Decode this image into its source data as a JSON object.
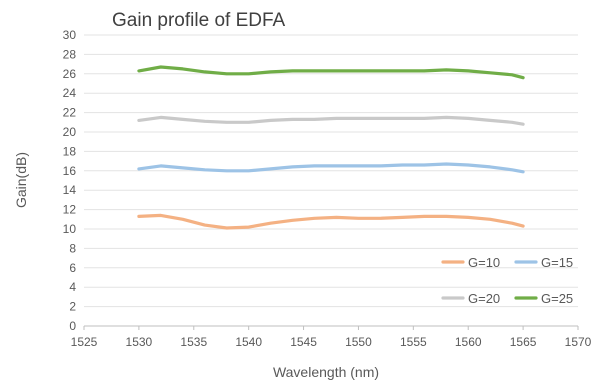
{
  "chart_data": {
    "type": "line",
    "title": "Gain profile of EDFA",
    "xlabel": "Wavelength (nm)",
    "ylabel": "Gain(dB)",
    "xlim": [
      1525,
      1570
    ],
    "ylim": [
      0,
      30
    ],
    "x_ticks": [
      "1525",
      "1530",
      "1535",
      "1540",
      "1545",
      "1550",
      "1555",
      "1560",
      "1565",
      "1570"
    ],
    "y_ticks": [
      "0",
      "2",
      "4",
      "6",
      "8",
      "10",
      "12",
      "14",
      "16",
      "18",
      "20",
      "22",
      "24",
      "26",
      "28",
      "30"
    ],
    "grid": "horizontal",
    "legend_position": "bottom-right",
    "x": [
      1530,
      1532,
      1534,
      1536,
      1538,
      1540,
      1542,
      1544,
      1546,
      1548,
      1550,
      1552,
      1554,
      1556,
      1558,
      1560,
      1562,
      1564,
      1565
    ],
    "series": [
      {
        "name": "G=10",
        "color": "#f4b183",
        "values": [
          11.3,
          11.4,
          11.0,
          10.4,
          10.1,
          10.2,
          10.6,
          10.9,
          11.1,
          11.2,
          11.1,
          11.1,
          11.2,
          11.3,
          11.3,
          11.2,
          11.0,
          10.6,
          10.3
        ]
      },
      {
        "name": "G=15",
        "color": "#9dc3e6",
        "values": [
          16.2,
          16.5,
          16.3,
          16.1,
          16.0,
          16.0,
          16.2,
          16.4,
          16.5,
          16.5,
          16.5,
          16.5,
          16.6,
          16.6,
          16.7,
          16.6,
          16.4,
          16.1,
          15.9
        ]
      },
      {
        "name": "G=20",
        "color": "#c9c9c9",
        "values": [
          21.2,
          21.5,
          21.3,
          21.1,
          21.0,
          21.0,
          21.2,
          21.3,
          21.3,
          21.4,
          21.4,
          21.4,
          21.4,
          21.4,
          21.5,
          21.4,
          21.2,
          21.0,
          20.8
        ]
      },
      {
        "name": "G=25",
        "color": "#70ad47",
        "values": [
          26.3,
          26.7,
          26.5,
          26.2,
          26.0,
          26.0,
          26.2,
          26.3,
          26.3,
          26.3,
          26.3,
          26.3,
          26.3,
          26.3,
          26.4,
          26.3,
          26.1,
          25.9,
          25.6
        ]
      }
    ]
  }
}
